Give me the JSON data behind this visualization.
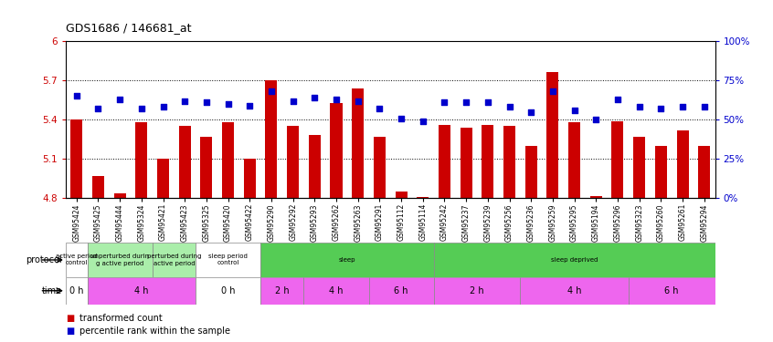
{
  "title": "GDS1686 / 146681_at",
  "samples": [
    "GSM95424",
    "GSM95425",
    "GSM95444",
    "GSM95324",
    "GSM95421",
    "GSM95423",
    "GSM95325",
    "GSM95420",
    "GSM95422",
    "GSM95290",
    "GSM95292",
    "GSM95293",
    "GSM95262",
    "GSM95263",
    "GSM95291",
    "GSM95112",
    "GSM95114",
    "GSM95242",
    "GSM95237",
    "GSM95239",
    "GSM95256",
    "GSM95236",
    "GSM95259",
    "GSM95295",
    "GSM95194",
    "GSM95296",
    "GSM95323",
    "GSM95260",
    "GSM95261",
    "GSM95294"
  ],
  "bar_values": [
    5.4,
    4.97,
    4.84,
    5.38,
    5.1,
    5.35,
    5.27,
    5.38,
    5.1,
    5.7,
    5.35,
    5.28,
    5.53,
    5.64,
    5.27,
    4.85,
    4.81,
    5.36,
    5.34,
    5.36,
    5.35,
    5.2,
    5.76,
    5.38,
    4.82,
    5.39,
    5.27,
    5.2,
    5.32,
    5.2
  ],
  "pct_values": [
    65,
    57,
    63,
    57,
    58,
    62,
    61,
    60,
    59,
    68,
    62,
    64,
    63,
    62,
    57,
    51,
    49,
    61,
    61,
    61,
    58,
    55,
    68,
    56,
    50,
    63,
    58,
    57,
    58,
    58
  ],
  "bar_color": "#cc0000",
  "pct_color": "#0000cc",
  "ylim_left": [
    4.8,
    6.0
  ],
  "ylim_right": [
    0,
    100
  ],
  "yticks_left": [
    4.8,
    5.1,
    5.4,
    5.7,
    6.0
  ],
  "yticks_right": [
    0,
    25,
    50,
    75,
    100
  ],
  "ytick_labels_right": [
    "0",
    "25",
    "50",
    "75",
    "100%"
  ],
  "grid_values": [
    5.1,
    5.4,
    5.7
  ],
  "proto_spans": [
    [
      0,
      1,
      "active period\ncontrol",
      "#ffffff"
    ],
    [
      1,
      4,
      "unperturbed durin\ng active period",
      "#aaeeaa"
    ],
    [
      4,
      6,
      "perturbed during\nactive period",
      "#aaeeaa"
    ],
    [
      6,
      9,
      "sleep period\ncontrol",
      "#ffffff"
    ],
    [
      9,
      17,
      "sleep",
      "#55cc55"
    ],
    [
      17,
      30,
      "sleep deprived",
      "#55cc55"
    ]
  ],
  "time_spans": [
    [
      0,
      1,
      "0 h",
      "#ffffff"
    ],
    [
      1,
      6,
      "4 h",
      "#ee66ee"
    ],
    [
      6,
      9,
      "0 h",
      "#ffffff"
    ],
    [
      9,
      11,
      "2 h",
      "#ee66ee"
    ],
    [
      11,
      14,
      "4 h",
      "#ee66ee"
    ],
    [
      14,
      17,
      "6 h",
      "#ee66ee"
    ],
    [
      17,
      21,
      "2 h",
      "#ee66ee"
    ],
    [
      21,
      26,
      "4 h",
      "#ee66ee"
    ],
    [
      26,
      30,
      "6 h",
      "#ee66ee"
    ]
  ],
  "protocol_label": "protocol",
  "time_label": "time",
  "legend_red": "transformed count",
  "legend_blue": "percentile rank within the sample"
}
